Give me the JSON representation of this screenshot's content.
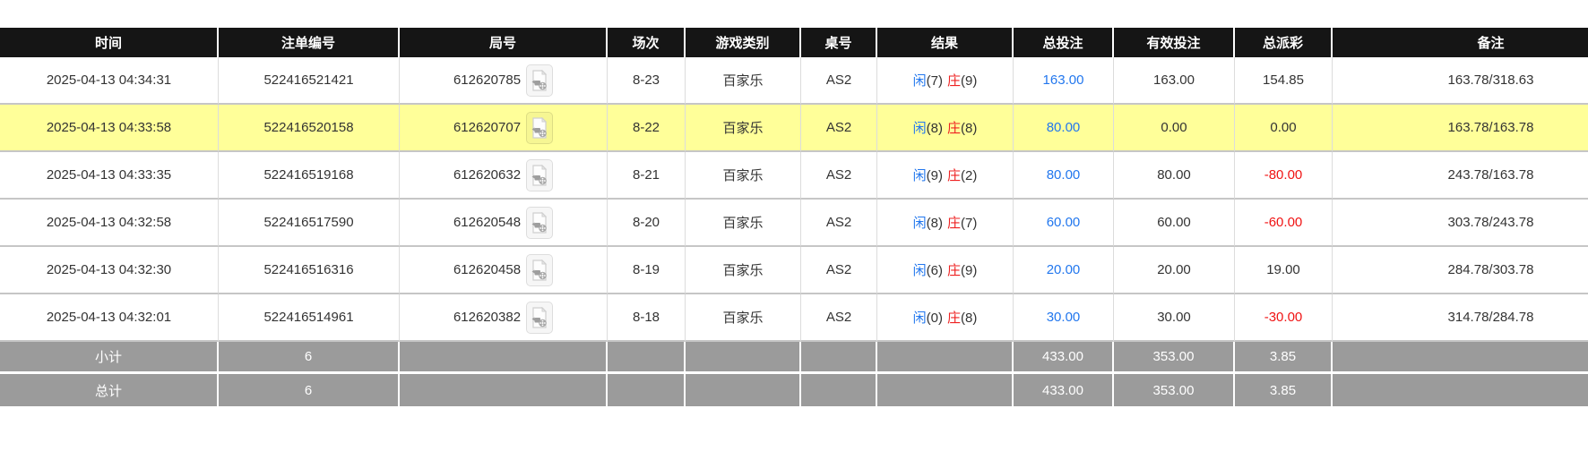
{
  "table": {
    "columns": [
      {
        "key": "time",
        "label": "时间"
      },
      {
        "key": "bet_id",
        "label": "注单编号"
      },
      {
        "key": "round",
        "label": "局号"
      },
      {
        "key": "session",
        "label": "场次"
      },
      {
        "key": "game_type",
        "label": "游戏类别"
      },
      {
        "key": "table_no",
        "label": "桌号"
      },
      {
        "key": "result",
        "label": "结果"
      },
      {
        "key": "total_bet",
        "label": "总投注"
      },
      {
        "key": "valid_bet",
        "label": "有效投注"
      },
      {
        "key": "total_payout",
        "label": "总派彩"
      },
      {
        "key": "remark",
        "label": "备注"
      }
    ],
    "rows": [
      {
        "time": "2025-04-13 04:34:31",
        "bet_id": "522416521421",
        "round": "612620785",
        "session": "8-23",
        "game_type": "百家乐",
        "table_no": "AS2",
        "result_player": "闲",
        "result_player_pts": "(7)",
        "result_banker": "庄",
        "result_banker_pts": "(9)",
        "total_bet": "163.00",
        "valid_bet": "163.00",
        "total_payout": "154.85",
        "remark": "163.78/318.63",
        "highlighted": false
      },
      {
        "time": "2025-04-13 04:33:58",
        "bet_id": "522416520158",
        "round": "612620707",
        "session": "8-22",
        "game_type": "百家乐",
        "table_no": "AS2",
        "result_player": "闲",
        "result_player_pts": "(8)",
        "result_banker": "庄",
        "result_banker_pts": "(8)",
        "total_bet": "80.00",
        "valid_bet": "0.00",
        "total_payout": "0.00",
        "remark": "163.78/163.78",
        "highlighted": true
      },
      {
        "time": "2025-04-13 04:33:35",
        "bet_id": "522416519168",
        "round": "612620632",
        "session": "8-21",
        "game_type": "百家乐",
        "table_no": "AS2",
        "result_player": "闲",
        "result_player_pts": "(9)",
        "result_banker": "庄",
        "result_banker_pts": "(2)",
        "total_bet": "80.00",
        "valid_bet": "80.00",
        "total_payout": "-80.00",
        "remark": "243.78/163.78",
        "highlighted": false
      },
      {
        "time": "2025-04-13 04:32:58",
        "bet_id": "522416517590",
        "round": "612620548",
        "session": "8-20",
        "game_type": "百家乐",
        "table_no": "AS2",
        "result_player": "闲",
        "result_player_pts": "(8)",
        "result_banker": "庄",
        "result_banker_pts": "(7)",
        "total_bet": "60.00",
        "valid_bet": "60.00",
        "total_payout": "-60.00",
        "remark": "303.78/243.78",
        "highlighted": false
      },
      {
        "time": "2025-04-13 04:32:30",
        "bet_id": "522416516316",
        "round": "612620458",
        "session": "8-19",
        "game_type": "百家乐",
        "table_no": "AS2",
        "result_player": "闲",
        "result_player_pts": "(6)",
        "result_banker": "庄",
        "result_banker_pts": "(9)",
        "total_bet": "20.00",
        "valid_bet": "20.00",
        "total_payout": "19.00",
        "remark": "284.78/303.78",
        "highlighted": false
      },
      {
        "time": "2025-04-13 04:32:01",
        "bet_id": "522416514961",
        "round": "612620382",
        "session": "8-18",
        "game_type": "百家乐",
        "table_no": "AS2",
        "result_player": "闲",
        "result_player_pts": "(0)",
        "result_banker": "庄",
        "result_banker_pts": "(8)",
        "total_bet": "30.00",
        "valid_bet": "30.00",
        "total_payout": "-30.00",
        "remark": "314.78/284.78",
        "highlighted": false
      }
    ],
    "footer_rows": [
      {
        "label": "小计",
        "count": "6",
        "total_bet": "433.00",
        "valid_bet": "353.00",
        "total_payout": "3.85",
        "kind": "subtotal"
      },
      {
        "label": "总计",
        "count": "6",
        "total_bet": "433.00",
        "valid_bet": "353.00",
        "total_payout": "3.85",
        "kind": "grandtotal"
      }
    ],
    "icons": {
      "round_video": "video-replay-icon"
    }
  },
  "colors": {
    "header_bg": "#151515",
    "footer_bg": "#9b9b9b",
    "highlight_yellow": "#ffff99",
    "accent_blue": "#2277ee",
    "result_red": "#ee2222",
    "negative_red": "#f01414"
  }
}
